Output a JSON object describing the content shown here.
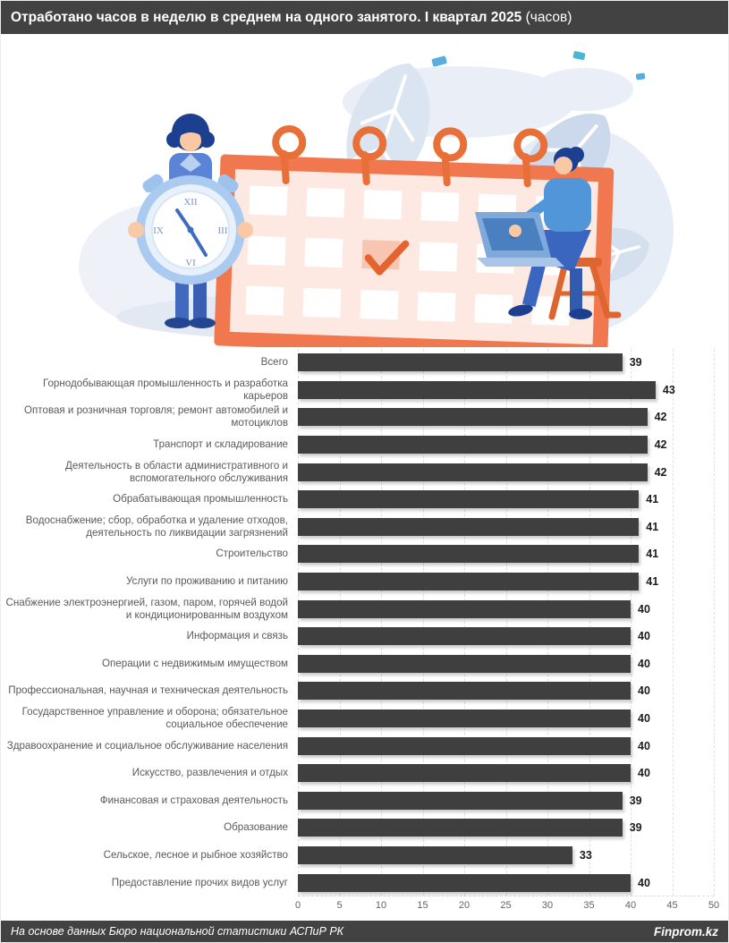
{
  "header": {
    "title_main": "Отработано часов в неделю в среднем на одного занятого. I квартал 2025",
    "title_suffix": " (часов)"
  },
  "chart_data": {
    "type": "bar",
    "orientation": "horizontal",
    "title": "Отработано часов в неделю в среднем на одного занятого. I квартал 2025 (часов)",
    "categories": [
      "Всего",
      "Горнодобывающая промышленность и разработка карьеров",
      "Оптовая и розничная торговля; ремонт автомобилей и мотоциклов",
      "Транспорт и складирование",
      "Деятельность в области административного и вспомогательного обслуживания",
      "Обрабатывающая промышленность",
      "Водоснабжение; сбор, обработка и удаление отходов, деятельность по ликвидации загрязнений",
      "Строительство",
      "Услуги по проживанию и питанию",
      "Снабжение электроэнергией, газом, паром, горячей водой и кондиционированным воздухом",
      "Информация и связь",
      "Операции с недвижимым имуществом",
      "Профессиональная, научная и техническая деятельность",
      "Государственное управление и оборона; обязательное социальное обеспечение",
      "Здравоохранение и социальное обслуживание населения",
      "Искусство, развлечения и отдых",
      "Финансовая и страховая деятельность",
      "Образование",
      "Сельское, лесное и рыбное хозяйство",
      "Предоставление прочих видов услуг"
    ],
    "values": [
      39,
      43,
      42,
      42,
      42,
      41,
      41,
      41,
      41,
      40,
      40,
      40,
      40,
      40,
      40,
      40,
      39,
      39,
      33,
      40
    ],
    "xlabel": "",
    "ylabel": "",
    "xlim": [
      0,
      50
    ],
    "xticks": [
      0,
      5,
      10,
      15,
      20,
      25,
      30,
      35,
      40,
      45,
      50
    ],
    "grid": "vertical-dashed",
    "legend": "none",
    "bar_color": "#3f3f3f",
    "label_color": "#5a5a5a",
    "value_label_color": "#1b1b1b"
  },
  "illustration": {
    "description": "people-planning-time-calendar-clock-illustration",
    "clock_numerals": {
      "top": "XII",
      "right": "III",
      "bottom": "VI",
      "left": "IX"
    },
    "colors": {
      "calendar_frame": "#f0774e",
      "calendar_page": "#fde9e1",
      "ring": "#e87038",
      "check": "#e4632f",
      "blue_dark": "#1d3f8f",
      "blue_mid": "#4a72c9",
      "shirt": "#5096d8",
      "clock_bezel": "#abcaf0",
      "leaf": "#d5e0ef",
      "ground": "#e3e9f3",
      "stool": "#dd6630",
      "skin": "#f9c9a6"
    }
  },
  "footer": {
    "source": "На основе данных Бюро национальной статистики АСПиР РК",
    "brand": "Finprom.kz"
  }
}
